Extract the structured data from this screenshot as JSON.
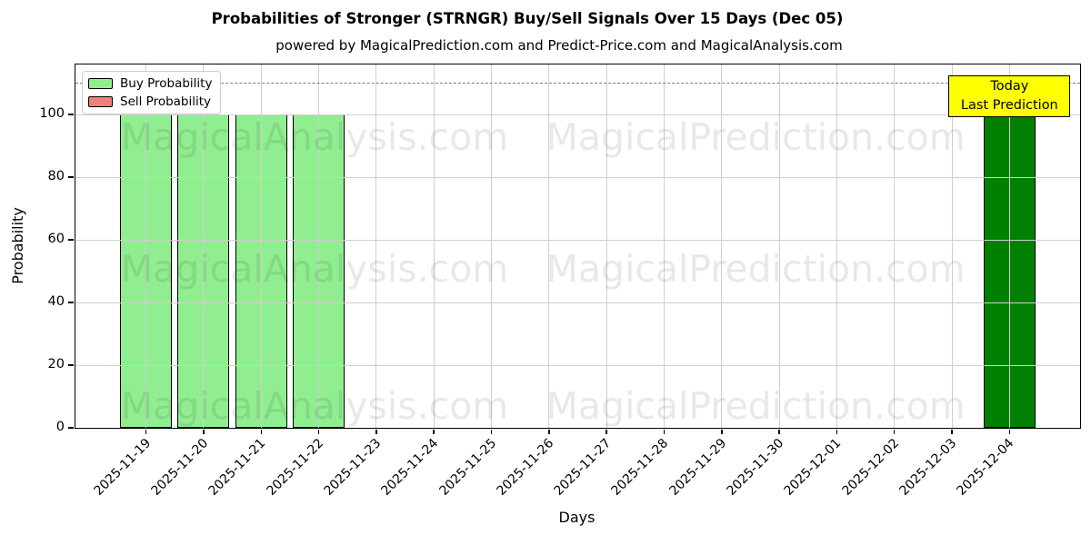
{
  "chart_data": {
    "type": "bar",
    "title": "Probabilities of Stronger (STRNGR) Buy/Sell Signals Over 15 Days (Dec 05)",
    "subtitle": "powered by MagicalPrediction.com and Predict-Price.com and MagicalAnalysis.com",
    "xlabel": "Days",
    "ylabel": "Probability",
    "ylim": [
      0,
      116
    ],
    "yticks": [
      0,
      20,
      40,
      60,
      80,
      100
    ],
    "grid": true,
    "legend_position": "upper-left",
    "categories": [
      "2025-11-19",
      "2025-11-20",
      "2025-11-21",
      "2025-11-22",
      "2025-11-23",
      "2025-11-24",
      "2025-11-25",
      "2025-11-26",
      "2025-11-27",
      "2025-11-28",
      "2025-11-29",
      "2025-11-30",
      "2025-12-01",
      "2025-12-02",
      "2025-12-03",
      "2025-12-04"
    ],
    "series": [
      {
        "name": "Buy Probability",
        "color": "#90ee90",
        "values": [
          100,
          100,
          100,
          100,
          0,
          0,
          0,
          0,
          0,
          0,
          0,
          0,
          0,
          0,
          0,
          100
        ]
      },
      {
        "name": "Sell Probability",
        "color": "#f08080",
        "values": [
          0,
          0,
          0,
          0,
          0,
          0,
          0,
          0,
          0,
          0,
          0,
          0,
          0,
          0,
          0,
          0
        ]
      }
    ],
    "bar_color_overrides": {
      "15": "#008000"
    },
    "bar_edge_color": "#000000",
    "dashed_line_y": 110,
    "dashed_line_color": "#7a7a7a",
    "annotation": {
      "lines": [
        "Today",
        "Last Prediction"
      ],
      "bg": "#ffff00",
      "border": "#000000",
      "category_index": 15
    }
  },
  "watermarks": {
    "texts": [
      "MagicalAnalysis.com",
      "MagicalPrediction.com"
    ]
  }
}
